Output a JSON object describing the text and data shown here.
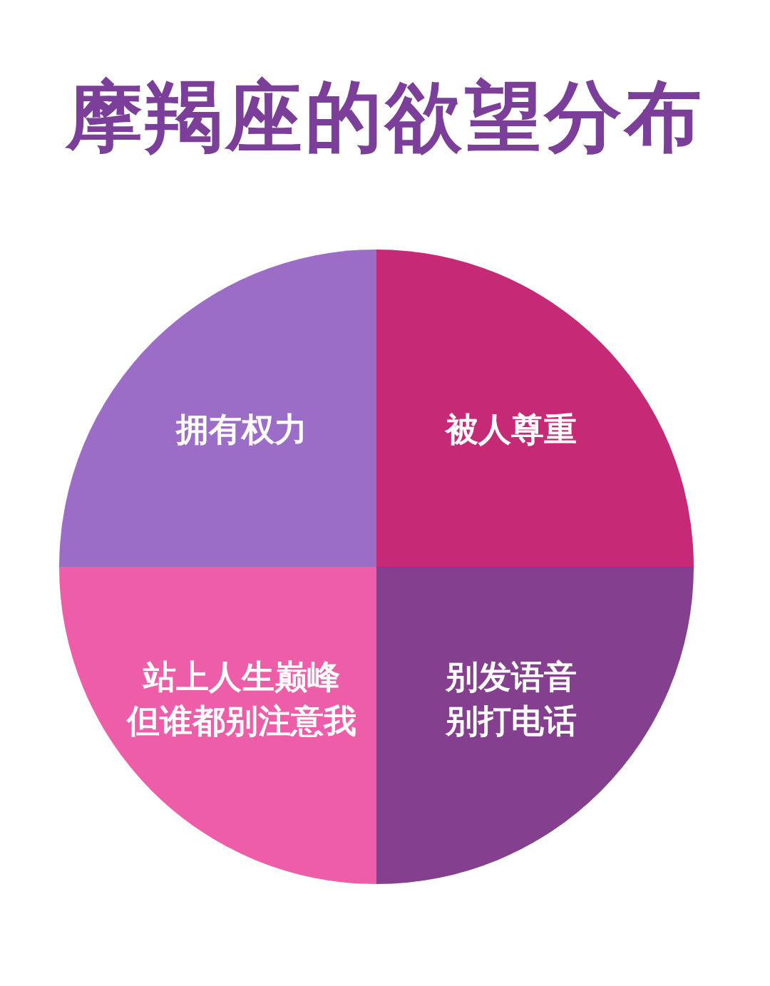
{
  "chart_data": {
    "type": "pie",
    "title": "摩羯座的欲望分布",
    "categories": [
      "被人尊重",
      "别发语音别打电话",
      "站上人生巅峰但谁都别注意我",
      "拥有权力"
    ],
    "values": [
      25,
      25,
      25,
      25
    ],
    "colors": [
      "#c62a77",
      "#843f8e",
      "#ee5ea8",
      "#9b6dc6"
    ],
    "legend": false
  }
}
